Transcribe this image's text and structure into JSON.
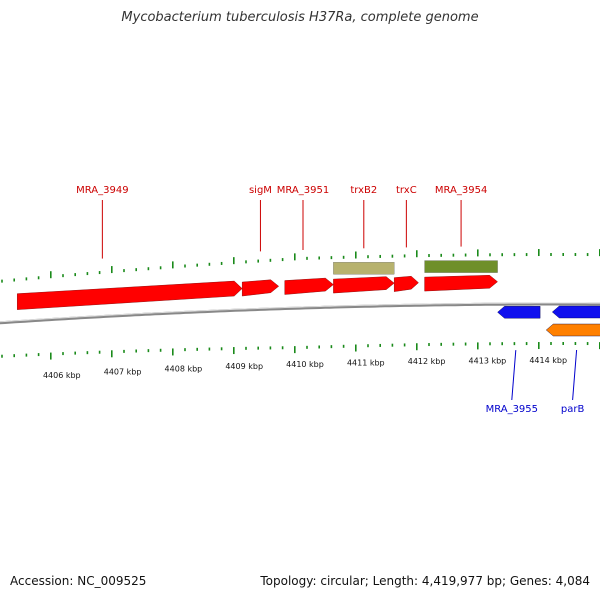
{
  "title": "Mycobacterium tuberculosis H37Ra, complete genome",
  "footer": {
    "accession": "Accession: NC_009525",
    "summary": "Topology: circular; Length: 4,419,977 bp; Genes: 4,084"
  },
  "colors": {
    "forward_cds": "#ff0000",
    "reverse_cds": "#1010ee",
    "reverse_cds_alt": "#ff8000",
    "rna_tan": "#b7b26e",
    "rna_olive": "#6f8f2a",
    "ticks": "#1a8a1a",
    "backbone": "#888888",
    "label_forward": "#cc0000",
    "label_reverse": "#0000cc"
  },
  "axis": {
    "tick_labels": [
      {
        "text": "4406 kbp",
        "kbp": 4406
      },
      {
        "text": "4407 kbp",
        "kbp": 4407
      },
      {
        "text": "4408 kbp",
        "kbp": 4408
      },
      {
        "text": "4409 kbp",
        "kbp": 4409
      },
      {
        "text": "4410 kbp",
        "kbp": 4410
      },
      {
        "text": "4411 kbp",
        "kbp": 4411
      },
      {
        "text": "4412 kbp",
        "kbp": 4412
      },
      {
        "text": "4413 kbp",
        "kbp": 4413
      },
      {
        "text": "4414 kbp",
        "kbp": 4414
      }
    ]
  },
  "features": [
    {
      "strand": "+",
      "color": "forward_cds",
      "start_kbp": 4405.3,
      "end_kbp": 4409.0
    },
    {
      "strand": "+",
      "color": "forward_cds",
      "start_kbp": 4409.0,
      "end_kbp": 4409.6
    },
    {
      "strand": "+",
      "color": "forward_cds",
      "start_kbp": 4409.7,
      "end_kbp": 4410.5
    },
    {
      "strand": "+",
      "color": "forward_cds",
      "start_kbp": 4410.5,
      "end_kbp": 4411.5
    },
    {
      "strand": "+",
      "color": "forward_cds",
      "start_kbp": 4411.5,
      "end_kbp": 4411.9
    },
    {
      "strand": "+",
      "color": "forward_cds",
      "start_kbp": 4412.0,
      "end_kbp": 4413.2
    },
    {
      "strand": "+",
      "color": "rna_tan",
      "start_kbp": 4410.5,
      "end_kbp": 4411.5
    },
    {
      "strand": "+",
      "color": "rna_olive",
      "start_kbp": 4412.0,
      "end_kbp": 4413.2
    },
    {
      "strand": "-",
      "color": "reverse_cds",
      "start_kbp": 4413.2,
      "end_kbp": 4413.9
    },
    {
      "strand": "-",
      "color": "reverse_cds",
      "start_kbp": 4414.1,
      "end_kbp": 4415.0
    },
    {
      "strand": "-",
      "color": "reverse_cds_alt",
      "start_kbp": 4414.0,
      "end_kbp": 4415.0
    }
  ],
  "labels": [
    {
      "text": "MRA_3949",
      "strand": "+",
      "kbp": 4406.7
    },
    {
      "text": "sigM",
      "strand": "+",
      "kbp": 4409.3
    },
    {
      "text": "MRA_3951",
      "strand": "+",
      "kbp": 4410.0
    },
    {
      "text": "trxB2",
      "strand": "+",
      "kbp": 4411.0
    },
    {
      "text": "trxC",
      "strand": "+",
      "kbp": 4411.7
    },
    {
      "text": "MRA_3954",
      "strand": "+",
      "kbp": 4412.6
    },
    {
      "text": "MRA_3955",
      "strand": "-",
      "kbp": 4413.5
    },
    {
      "text": "parB",
      "strand": "-",
      "kbp": 4414.5
    }
  ]
}
